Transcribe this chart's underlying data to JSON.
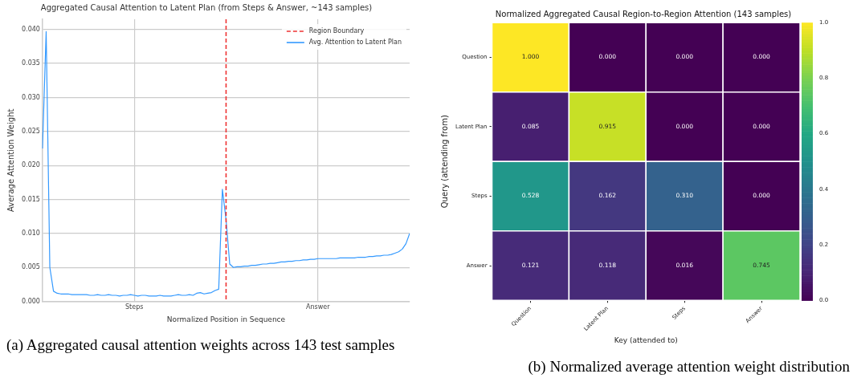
{
  "chart_data": [
    {
      "type": "line",
      "title": "Aggregated Causal Attention to Latent Plan (from Steps & Answer, ~143 samples)",
      "xlabel": "Normalized Position in Sequence",
      "ylabel": "Average Attention Weight",
      "categories": [
        null,
        null,
        null,
        null,
        null,
        null,
        null,
        null,
        null,
        null,
        null,
        null,
        null,
        null,
        null,
        null,
        null,
        null,
        null,
        null,
        null,
        null,
        null,
        null,
        null,
        "Steps",
        null,
        null,
        null,
        null,
        null,
        null,
        null,
        null,
        null,
        null,
        null,
        null,
        null,
        null,
        null,
        null,
        null,
        null,
        null,
        null,
        null,
        null,
        null,
        null,
        null,
        null,
        null,
        null,
        null,
        null,
        null,
        null,
        null,
        null,
        null,
        null,
        null,
        null,
        null,
        null,
        null,
        null,
        null,
        null,
        null,
        null,
        null,
        null,
        null,
        "Answer",
        null,
        null,
        null,
        null,
        null,
        null,
        null,
        null,
        null,
        null,
        null,
        null,
        null,
        null,
        null,
        null,
        null,
        null,
        null,
        null,
        null,
        null,
        null,
        null,
        null
      ],
      "series": [
        {
          "name": "Avg. Attention to Latent Plan",
          "color": "#3399ff",
          "values": [
            0.0225,
            0.0397,
            0.005,
            0.0015,
            0.0012,
            0.0011,
            0.0011,
            0.0011,
            0.001,
            0.001,
            0.001,
            0.001,
            0.001,
            0.0009,
            0.0009,
            0.001,
            0.0009,
            0.0009,
            0.001,
            0.0009,
            0.0009,
            0.0008,
            0.0009,
            0.0009,
            0.001,
            0.0009,
            0.0008,
            0.0009,
            0.0009,
            0.0008,
            0.0008,
            0.0008,
            0.0009,
            0.0008,
            0.0008,
            0.0008,
            0.0009,
            0.001,
            0.0009,
            0.0009,
            0.001,
            0.0009,
            0.0012,
            0.0013,
            0.0011,
            0.0012,
            0.0013,
            0.0016,
            0.0018,
            0.0165,
            0.012,
            0.0055,
            0.005,
            0.0051,
            0.0051,
            0.0052,
            0.0052,
            0.0053,
            0.0053,
            0.0054,
            0.0055,
            0.0055,
            0.0056,
            0.0056,
            0.0057,
            0.0058,
            0.0058,
            0.0059,
            0.0059,
            0.006,
            0.006,
            0.0061,
            0.0061,
            0.0062,
            0.0062,
            0.0063,
            0.0063,
            0.0063,
            0.0063,
            0.0063,
            0.0063,
            0.0064,
            0.0064,
            0.0064,
            0.0064,
            0.0064,
            0.0065,
            0.0065,
            0.0065,
            0.0066,
            0.0066,
            0.0067,
            0.0067,
            0.0068,
            0.0068,
            0.0069,
            0.0071,
            0.0073,
            0.0077,
            0.0085,
            0.01
          ]
        }
      ],
      "ylim": [
        0,
        0.0415
      ],
      "yticks": [
        {
          "value": 0,
          "label": "0.000"
        },
        {
          "value": 0.005,
          "label": "0.005"
        },
        {
          "value": 0.01,
          "label": "0.010"
        },
        {
          "value": 0.015,
          "label": "0.015"
        },
        {
          "value": 0.02,
          "label": "0.020"
        },
        {
          "value": 0.025,
          "label": "0.025"
        },
        {
          "value": 0.03,
          "label": "0.030"
        },
        {
          "value": 0.035,
          "label": "0.035"
        },
        {
          "value": 0.04,
          "label": "0.040"
        }
      ],
      "ref_lines": [
        {
          "axis": "x",
          "label": "Region Boundary",
          "color": "#ee3333",
          "line_style": "dashed"
        }
      ],
      "grid": true,
      "legend": "top right",
      "annotations": [
        "(a) Aggregated causal attention weights across 143 test samples"
      ]
    },
    {
      "type": "heatmap",
      "title": "Normalized Aggregated Causal Region-to-Region Attention (143 samples)",
      "xlabel": "Key (attended to)",
      "ylabel": "Query (attending from)",
      "categories": [
        "Question",
        "Latent Plan",
        "Steps",
        "Answer"
      ],
      "y_categories": [
        "Question",
        "Latent Plan",
        "Steps",
        "Answer"
      ],
      "cells": [
        [
          1.0,
          0.0,
          0.0,
          0.0
        ],
        [
          0.085,
          0.915,
          0.0,
          0.0
        ],
        [
          0.528,
          0.162,
          0.31,
          0.0
        ],
        [
          0.121,
          0.118,
          0.016,
          0.745
        ]
      ],
      "cell_labels": [
        [
          "1.000",
          "0.000",
          "0.000",
          "0.000"
        ],
        [
          "0.085",
          "0.915",
          "0.000",
          "0.000"
        ],
        [
          "0.528",
          "0.162",
          "0.310",
          "0.000"
        ],
        [
          "0.121",
          "0.118",
          "0.016",
          "0.745"
        ]
      ],
      "clim": [
        0,
        1
      ],
      "cticks": [
        {
          "value": 0,
          "label": "0.0"
        },
        {
          "value": 0.2,
          "label": "0.2"
        },
        {
          "value": 0.4,
          "label": "0.4"
        },
        {
          "value": 0.6,
          "label": "0.6"
        },
        {
          "value": 0.8,
          "label": "0.8"
        },
        {
          "value": 1,
          "label": "1.0"
        }
      ],
      "annotations": [
        "(b) Normalized average attention weight distribution"
      ]
    }
  ]
}
